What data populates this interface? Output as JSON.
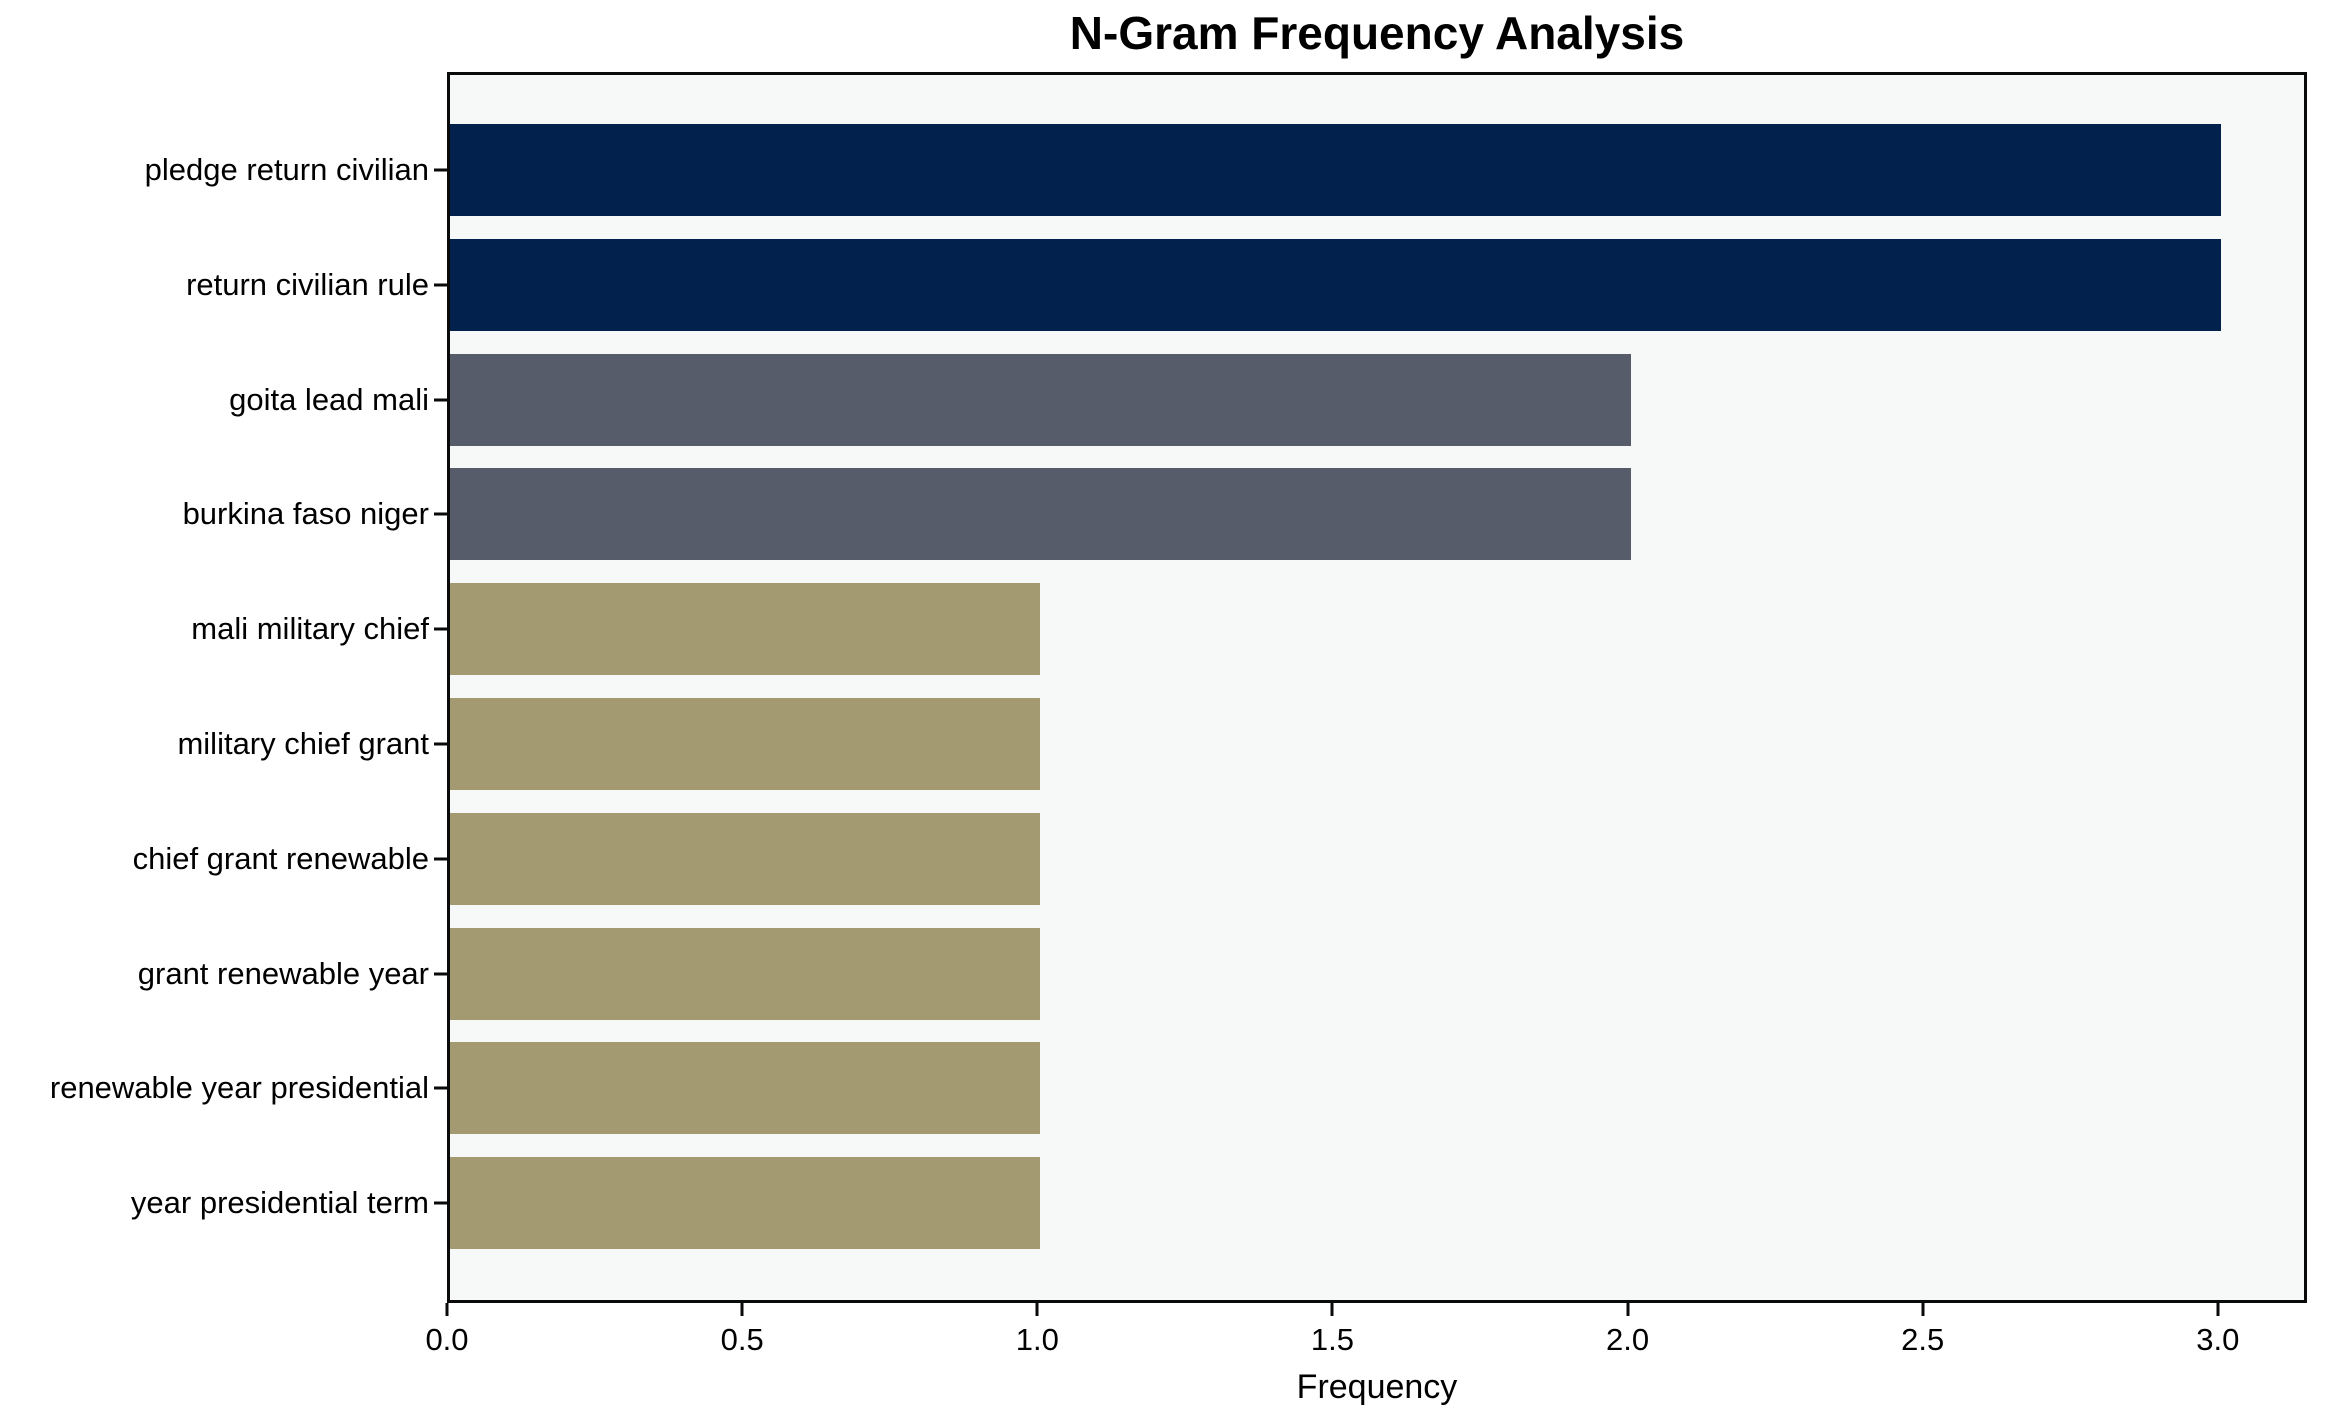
{
  "chart_data": {
    "type": "bar",
    "orientation": "horizontal",
    "title": "N-Gram Frequency Analysis",
    "xlabel": "Frequency",
    "ylabel": "",
    "categories": [
      "pledge return civilian",
      "return civilian rule",
      "goita lead mali",
      "burkina faso niger",
      "mali military chief",
      "military chief grant",
      "chief grant renewable",
      "grant renewable year",
      "renewable year presidential",
      "year presidential term"
    ],
    "values": [
      3,
      3,
      2,
      2,
      1,
      1,
      1,
      1,
      1,
      1
    ],
    "bar_colors": [
      "#02214c",
      "#02214c",
      "#565c6a",
      "#565c6a",
      "#a39a71",
      "#a39a71",
      "#a39a71",
      "#a39a71",
      "#a39a71",
      "#a39a71"
    ],
    "x_ticks": [
      "0.0",
      "0.5",
      "1.0",
      "1.5",
      "2.0",
      "2.5",
      "3.0"
    ],
    "x_tick_values": [
      0,
      0.5,
      1,
      1.5,
      2,
      2.5,
      3
    ],
    "xlim": [
      0,
      3.151
    ],
    "grid": false,
    "legend_position": "none",
    "plot_background_color": "#f7f8f8",
    "figure_background_color": "#ffffff",
    "axis_color": "#0a0a0a",
    "value_color_legend": {
      "frequency_3": "#02214c",
      "frequency_2": "#565c6a",
      "frequency_1": "#a39a71"
    }
  }
}
